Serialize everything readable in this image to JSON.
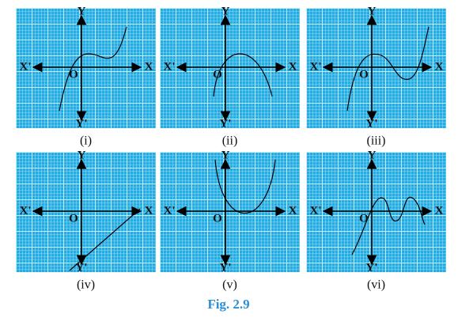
{
  "panels": [
    {
      "caption": "(i)",
      "labels": {
        "x_neg": "X'",
        "x": "X",
        "y": "Y",
        "y_neg": "Y'",
        "origin": "O"
      }
    },
    {
      "caption": "(ii)",
      "labels": {
        "x_neg": "X'",
        "x": "X",
        "y": "Y",
        "y_neg": "Y'",
        "origin": "O"
      }
    },
    {
      "caption": "(iii)",
      "labels": {
        "x_neg": "X'",
        "x": "X",
        "y": "Y",
        "y_neg": "Y'",
        "origin": "O"
      }
    },
    {
      "caption": "(iv)",
      "labels": {
        "x_neg": "X'",
        "x": "X",
        "y": "Y",
        "y_neg": "Y'",
        "origin": "O"
      }
    },
    {
      "caption": "(v)",
      "labels": {
        "x_neg": "X'",
        "x": "X",
        "y": "Y",
        "y_neg": "Y'",
        "origin": "O"
      }
    },
    {
      "caption": "(vi)",
      "labels": {
        "x_neg": "X'",
        "x": "X",
        "y": "Y",
        "y_neg": "Y'",
        "origin": "O"
      }
    }
  ],
  "caption": "Fig. 2.9"
}
